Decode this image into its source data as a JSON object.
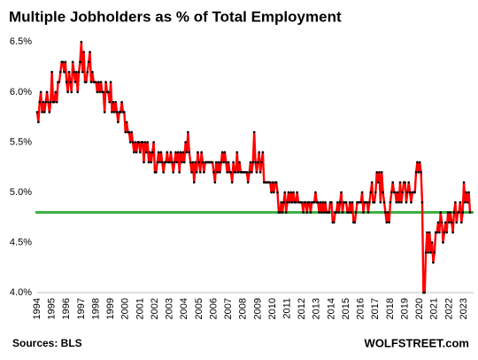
{
  "chart_data": {
    "type": "line",
    "title": "Multiple Jobholders as % of Total Employment",
    "source": "Sources: BLS",
    "watermark": "WOLFSTREET.com",
    "categories": [
      "1994",
      null,
      null,
      null,
      null,
      null,
      null,
      null,
      null,
      null,
      null,
      null,
      "1995",
      null,
      null,
      null,
      null,
      null,
      null,
      null,
      null,
      null,
      null,
      null,
      "1996",
      null,
      null,
      null,
      null,
      null,
      null,
      null,
      null,
      null,
      null,
      null,
      "1997",
      null,
      null,
      null,
      null,
      null,
      null,
      null,
      null,
      null,
      null,
      null,
      "1998",
      null,
      null,
      null,
      null,
      null,
      null,
      null,
      null,
      null,
      null,
      null,
      "1999",
      null,
      null,
      null,
      null,
      null,
      null,
      null,
      null,
      null,
      null,
      null,
      "2000",
      null,
      null,
      null,
      null,
      null,
      null,
      null,
      null,
      null,
      null,
      null,
      "2001",
      null,
      null,
      null,
      null,
      null,
      null,
      null,
      null,
      null,
      null,
      null,
      "2002",
      null,
      null,
      null,
      null,
      null,
      null,
      null,
      null,
      null,
      null,
      null,
      "2003",
      null,
      null,
      null,
      null,
      null,
      null,
      null,
      null,
      null,
      null,
      null,
      "2004",
      null,
      null,
      null,
      null,
      null,
      null,
      null,
      null,
      null,
      null,
      null,
      "2005",
      null,
      null,
      null,
      null,
      null,
      null,
      null,
      null,
      null,
      null,
      null,
      "2006",
      null,
      null,
      null,
      null,
      null,
      null,
      null,
      null,
      null,
      null,
      null,
      "2007",
      null,
      null,
      null,
      null,
      null,
      null,
      null,
      null,
      null,
      null,
      null,
      "2008",
      null,
      null,
      null,
      null,
      null,
      null,
      null,
      null,
      null,
      null,
      null,
      "2009",
      null,
      null,
      null,
      null,
      null,
      null,
      null,
      null,
      null,
      null,
      null,
      "2010",
      null,
      null,
      null,
      null,
      null,
      null,
      null,
      null,
      null,
      null,
      null,
      "2011",
      null,
      null,
      null,
      null,
      null,
      null,
      null,
      null,
      null,
      null,
      null,
      "2012",
      null,
      null,
      null,
      null,
      null,
      null,
      null,
      null,
      null,
      null,
      null,
      "2013",
      null,
      null,
      null,
      null,
      null,
      null,
      null,
      null,
      null,
      null,
      null,
      "2014",
      null,
      null,
      null,
      null,
      null,
      null,
      null,
      null,
      null,
      null,
      null,
      "2015",
      null,
      null,
      null,
      null,
      null,
      null,
      null,
      null,
      null,
      null,
      null,
      "2016",
      null,
      null,
      null,
      null,
      null,
      null,
      null,
      null,
      null,
      null,
      null,
      "2017",
      null,
      null,
      null,
      null,
      null,
      null,
      null,
      null,
      null,
      null,
      null,
      "2018",
      null,
      null,
      null,
      null,
      null,
      null,
      null,
      null,
      null,
      null,
      null,
      "2019",
      null,
      null,
      null,
      null,
      null,
      null,
      null,
      null,
      null,
      null,
      null,
      "2020",
      null,
      null,
      null,
      null,
      null,
      null,
      null,
      null,
      null,
      null,
      null,
      "2021",
      null,
      null,
      null,
      null,
      null,
      null,
      null,
      null,
      null,
      null,
      null,
      "2022",
      null,
      null,
      null,
      null,
      null,
      null,
      null,
      null,
      null,
      null,
      null,
      "2023",
      null,
      null,
      null,
      null,
      null
    ],
    "series": [
      {
        "color": "#ff0000",
        "marker_color": "#000000",
        "values": [
          5.8,
          5.7,
          5.9,
          6.0,
          5.8,
          5.9,
          5.8,
          5.9,
          6.0,
          5.9,
          5.8,
          5.9,
          6.2,
          5.9,
          5.9,
          6.0,
          5.9,
          6.1,
          6.1,
          6.2,
          6.3,
          6.3,
          6.2,
          6.3,
          6.1,
          6.0,
          6.2,
          6.1,
          6.0,
          6.3,
          6.2,
          6.1,
          6.2,
          6.0,
          6.2,
          6.3,
          6.5,
          6.2,
          6.4,
          6.1,
          6.1,
          6.2,
          6.3,
          6.4,
          6.1,
          6.2,
          6.1,
          6.1,
          6.1,
          6.0,
          6.1,
          6.0,
          6.1,
          6.0,
          6.0,
          5.8,
          6.1,
          6.0,
          6.0,
          5.9,
          6.1,
          5.8,
          5.9,
          5.8,
          5.9,
          5.8,
          5.7,
          5.8,
          5.8,
          5.9,
          5.8,
          5.8,
          5.6,
          5.7,
          5.6,
          5.6,
          5.5,
          5.6,
          5.5,
          5.4,
          5.5,
          5.4,
          5.5,
          5.5,
          5.4,
          5.5,
          5.5,
          5.3,
          5.5,
          5.4,
          5.5,
          5.3,
          5.4,
          5.3,
          5.4,
          5.5,
          5.2,
          5.2,
          5.3,
          5.4,
          5.3,
          5.4,
          5.3,
          5.2,
          5.3,
          5.3,
          5.4,
          5.3,
          5.3,
          5.4,
          5.3,
          5.2,
          5.3,
          5.4,
          5.3,
          5.4,
          5.2,
          5.4,
          5.3,
          5.4,
          5.3,
          5.5,
          5.4,
          5.6,
          5.4,
          5.3,
          5.2,
          5.3,
          5.1,
          5.3,
          5.2,
          5.4,
          5.3,
          5.2,
          5.4,
          5.3,
          5.2,
          5.3,
          5.3,
          5.3,
          5.3,
          5.3,
          5.3,
          5.3,
          5.2,
          5.1,
          5.3,
          5.2,
          5.3,
          5.2,
          5.3,
          5.4,
          5.3,
          5.4,
          5.3,
          5.2,
          5.3,
          5.2,
          5.2,
          5.1,
          5.3,
          5.2,
          5.2,
          5.4,
          5.2,
          5.3,
          5.2,
          5.2,
          5.2,
          5.2,
          5.2,
          5.2,
          5.1,
          5.2,
          5.3,
          5.2,
          5.3,
          5.6,
          5.3,
          5.2,
          5.3,
          5.4,
          5.2,
          5.3,
          5.4,
          5.1,
          5.1,
          5.1,
          5.1,
          5.1,
          5.1,
          5.0,
          5.1,
          5.0,
          5.1,
          5.1,
          5.0,
          4.8,
          4.8,
          4.9,
          4.8,
          4.9,
          5.0,
          4.8,
          4.9,
          5.0,
          4.9,
          5.0,
          4.9,
          5.0,
          4.9,
          4.9,
          5.0,
          4.9,
          4.9,
          4.9,
          4.9,
          4.8,
          4.9,
          4.9,
          4.8,
          4.9,
          4.9,
          4.8,
          4.9,
          4.9,
          4.9,
          5.0,
          4.9,
          4.9,
          4.8,
          4.9,
          4.8,
          4.9,
          4.8,
          4.9,
          4.8,
          4.8,
          4.8,
          4.9,
          4.9,
          4.7,
          4.7,
          4.8,
          4.8,
          4.9,
          4.8,
          4.9,
          5.0,
          4.8,
          4.9,
          4.9,
          4.9,
          4.8,
          4.8,
          4.9,
          4.8,
          4.9,
          4.7,
          4.7,
          4.8,
          4.9,
          4.9,
          4.9,
          4.9,
          5.0,
          4.8,
          4.9,
          4.9,
          4.9,
          4.8,
          4.9,
          5.0,
          5.1,
          4.9,
          4.9,
          5.0,
          5.2,
          5.1,
          5.2,
          4.9,
          5.2,
          5.0,
          4.9,
          4.8,
          4.7,
          4.8,
          4.7,
          4.9,
          5.0,
          5.1,
          5.0,
          5.0,
          4.9,
          5.0,
          4.9,
          5.1,
          4.9,
          5.0,
          5.1,
          5.1,
          4.9,
          5.0,
          5.1,
          5.0,
          4.9,
          5.0,
          5.0,
          5.0,
          5.2,
          5.3,
          5.2,
          5.3,
          5.2,
          4.9,
          4.0,
          4.0,
          4.4,
          4.6,
          4.4,
          4.6,
          4.4,
          4.5,
          4.3,
          4.4,
          4.6,
          4.6,
          4.7,
          4.6,
          4.8,
          4.7,
          4.5,
          4.6,
          4.7,
          4.6,
          4.8,
          4.7,
          4.8,
          4.7,
          4.6,
          4.8,
          4.9,
          4.7,
          4.8,
          4.8,
          4.9,
          4.7,
          4.8,
          5.1,
          4.9,
          5.0,
          4.9,
          5.0,
          4.8
        ]
      }
    ],
    "reference_line": {
      "value": 4.8,
      "color": "#3cb043"
    },
    "ylim": [
      4.0,
      6.6
    ],
    "yticks": [
      {
        "value": 4.0,
        "label": "4.0%"
      },
      {
        "value": 4.5,
        "label": "4.5%"
      },
      {
        "value": 5.0,
        "label": "5.0%"
      },
      {
        "value": 5.5,
        "label": "5.5%"
      },
      {
        "value": 6.0,
        "label": "6.0%"
      },
      {
        "value": 6.5,
        "label": "6.5%"
      }
    ],
    "grid": false
  }
}
